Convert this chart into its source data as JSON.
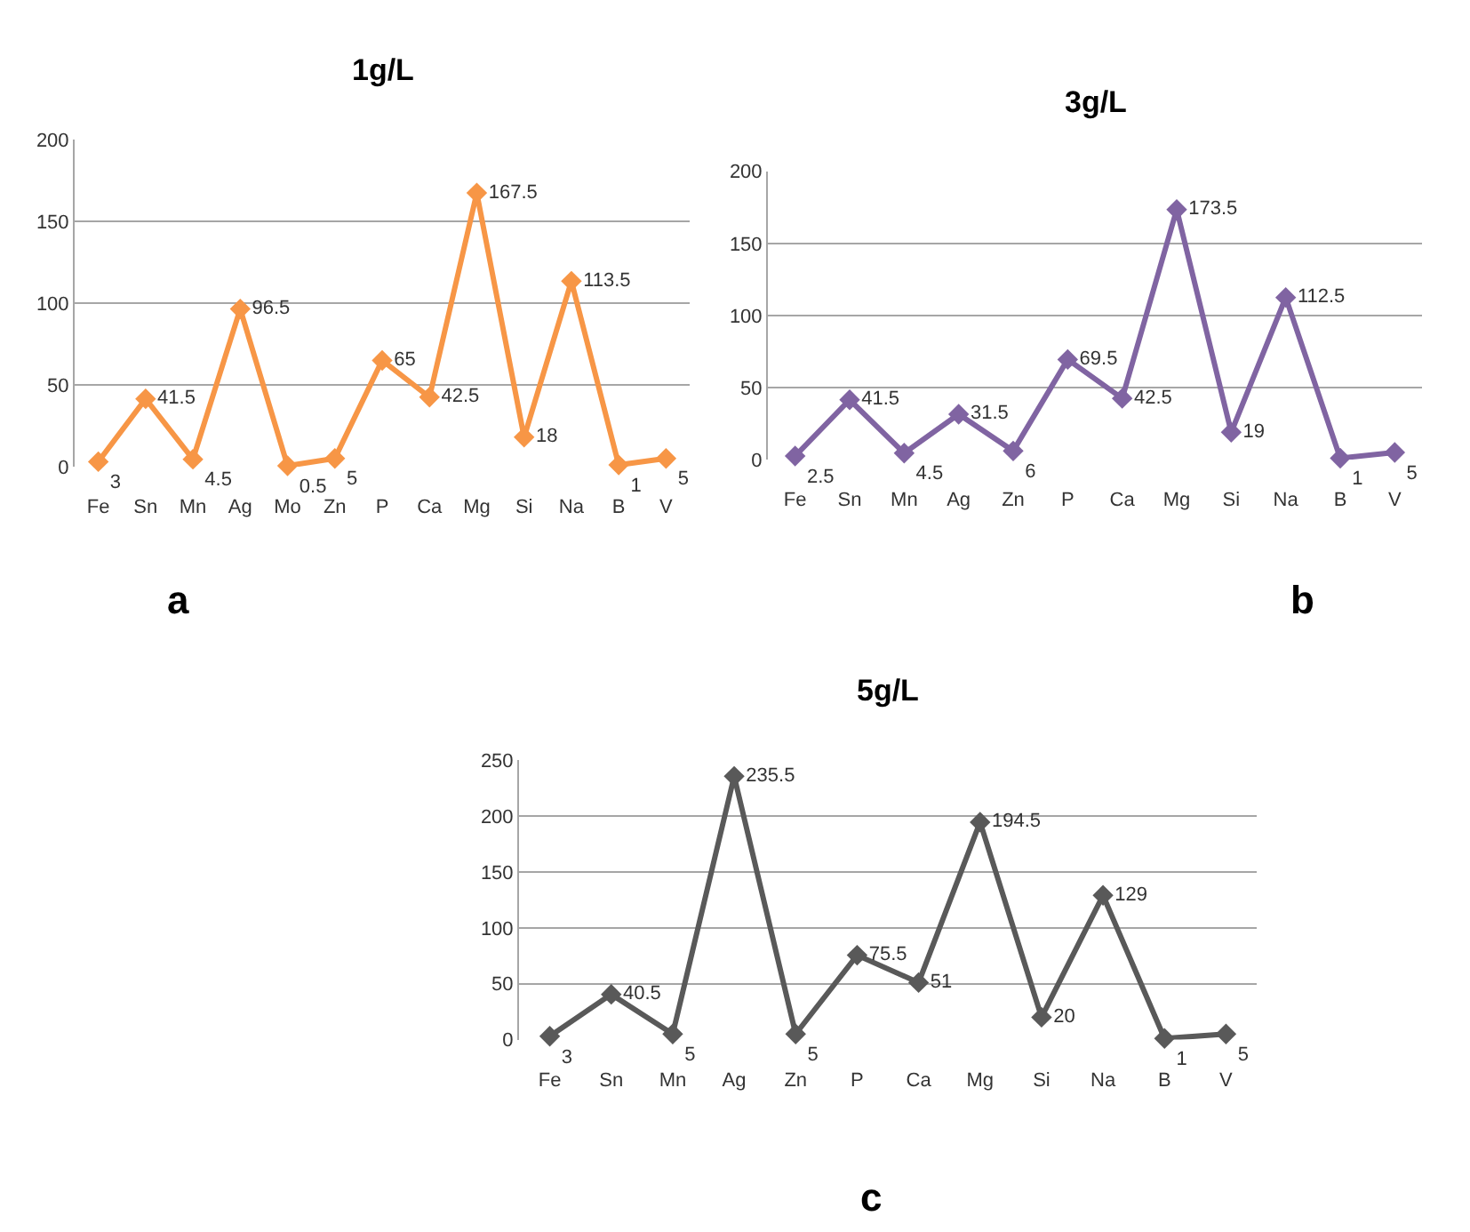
{
  "chart_data": [
    {
      "type": "line",
      "title": "1g/L",
      "categories": [
        "Fe",
        "Sn",
        "Mn",
        "Ag",
        "Mo",
        "Zn",
        "P",
        "Ca",
        "Mg",
        "Si",
        "Na",
        "B",
        "V"
      ],
      "series": [
        {
          "color": "#f79646",
          "values": [
            3,
            41.5,
            4.5,
            96.5,
            0.5,
            5,
            65,
            42.5,
            167.5,
            18,
            113.5,
            1,
            5
          ]
        }
      ],
      "ylim": [
        0,
        200
      ],
      "yticks": [
        0,
        50,
        100,
        150,
        200
      ],
      "grid": "y",
      "marker": "diamond",
      "data_labels": true,
      "annotations": [
        "a"
      ]
    },
    {
      "type": "line",
      "title": "3g/L",
      "categories": [
        "Fe",
        "Sn",
        "Mn",
        "Ag",
        "Zn",
        "P",
        "Ca",
        "Mg",
        "Si",
        "Na",
        "B",
        "V"
      ],
      "series": [
        {
          "color": "#8064a2",
          "values": [
            2.5,
            41.5,
            4.5,
            31.5,
            6,
            69.5,
            42.5,
            173.5,
            19,
            112.5,
            1,
            5
          ]
        }
      ],
      "ylim": [
        0,
        200
      ],
      "yticks": [
        0,
        50,
        100,
        150,
        200
      ],
      "grid": "y",
      "marker": "diamond",
      "data_labels": true,
      "annotations": [
        "b"
      ]
    },
    {
      "type": "line",
      "title": "5g/L",
      "categories": [
        "Fe",
        "Sn",
        "Mn",
        "Ag",
        "Zn",
        "P",
        "Ca",
        "Mg",
        "Si",
        "Na",
        "B",
        "V"
      ],
      "series": [
        {
          "color": "#595959",
          "values": [
            3,
            40.5,
            5,
            235.5,
            5,
            75.5,
            51,
            194.5,
            20,
            129,
            1,
            5
          ]
        }
      ],
      "ylim": [
        0,
        250
      ],
      "yticks": [
        0,
        50,
        100,
        150,
        200,
        250
      ],
      "grid": "y",
      "marker": "diamond",
      "data_labels": true,
      "annotations": [
        "c"
      ]
    }
  ]
}
